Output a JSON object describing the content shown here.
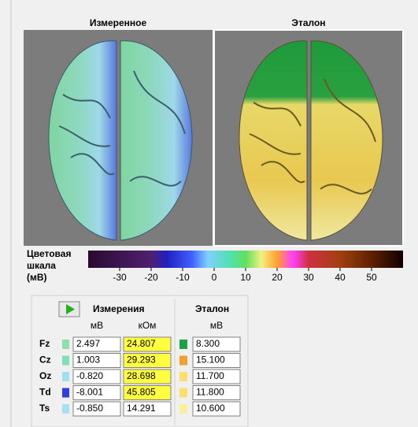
{
  "panels": [
    {
      "title": "Измеренное"
    },
    {
      "title": "Эталон"
    }
  ],
  "scale": {
    "label": [
      "Цветовая",
      "шкала",
      "(мВ)"
    ],
    "ticks": [
      -30,
      -20,
      -10,
      0,
      10,
      20,
      30,
      40,
      50
    ]
  },
  "table": {
    "measure_title": "Измерения",
    "reference_title": "Эталон",
    "units": [
      "мВ",
      "кОм",
      "мВ"
    ],
    "rows": [
      {
        "label": "Fz",
        "mv": "2.497",
        "kohm": "24.807",
        "ref": "8.300",
        "color": "#8fe0a8",
        "ref_color": "#1fa046",
        "kohm_highlight": true
      },
      {
        "label": "Cz",
        "mv": "1.003",
        "kohm": "29.293",
        "ref": "15.100",
        "color": "#7fe0b8",
        "ref_color": "#f0a030",
        "kohm_highlight": true
      },
      {
        "label": "Oz",
        "mv": "-0.820",
        "kohm": "28.698",
        "ref": "11.700",
        "color": "#a0e0f0",
        "ref_color": "#f8e070",
        "kohm_highlight": true
      },
      {
        "label": "Td",
        "mv": "-8.001",
        "kohm": "45.805",
        "ref": "11.800",
        "color": "#3040d8",
        "ref_color": "#f8e070",
        "kohm_highlight": true
      },
      {
        "label": "Ts",
        "mv": "-0.850",
        "kohm": "14.291",
        "ref": "10.600",
        "color": "#a8e0f0",
        "ref_color": "#f8f0a0",
        "kohm_highlight": false
      }
    ]
  }
}
